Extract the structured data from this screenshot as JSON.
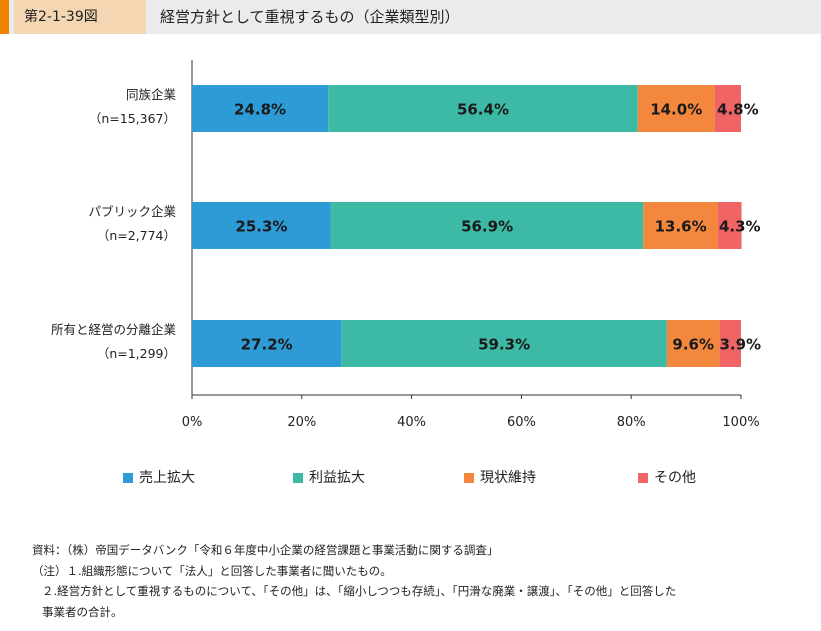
{
  "header": {
    "figure_number": "第2-1-39図",
    "title": "経営方針として重視するもの（企業類型別）"
  },
  "chart_data": {
    "type": "bar",
    "orientation": "horizontal",
    "stacked": true,
    "percent_stacked": true,
    "categories": [
      {
        "name": "同族企業",
        "n": "（n=15,367）"
      },
      {
        "name": "パブリック企業",
        "n": "（n=2,774）"
      },
      {
        "name": "所有と経営の分離企業",
        "n": "（n=1,299）"
      }
    ],
    "series": [
      {
        "name": "売上拡大",
        "color": "#2e9bd6",
        "values": [
          24.8,
          25.3,
          27.2
        ],
        "labels": [
          "24.8%",
          "25.3%",
          "27.2%"
        ]
      },
      {
        "name": "利益拡大",
        "color": "#3dbaa6",
        "values": [
          56.4,
          56.9,
          59.3
        ],
        "labels": [
          "56.4%",
          "56.9%",
          "59.3%"
        ]
      },
      {
        "name": "現状維持",
        "color": "#f4873e",
        "values": [
          14.0,
          13.6,
          9.6
        ],
        "labels": [
          "14.0%",
          "13.6%",
          "9.6%"
        ]
      },
      {
        "name": "その他",
        "color": "#f06466",
        "values": [
          4.8,
          4.3,
          3.9
        ],
        "labels": [
          "4.8%",
          "4.3%",
          "3.9%"
        ]
      }
    ],
    "x_ticks": [
      "0%",
      "20%",
      "40%",
      "60%",
      "80%",
      "100%"
    ],
    "xlim": [
      0,
      100
    ],
    "legend_position": "bottom"
  },
  "notes": [
    "資料：（株）帝国データバンク「令和６年度中小企業の経営課題と事業活動に関する調査」",
    "（注）１.組織形態について「法人」と回答した事業者に聞いたもの。",
    "２.経営方針として重視するものについて、「その他」は、「縮小しつつも存続」、「円滑な廃業・譲渡」、「その他」と回答した",
    "事業者の合計。"
  ]
}
